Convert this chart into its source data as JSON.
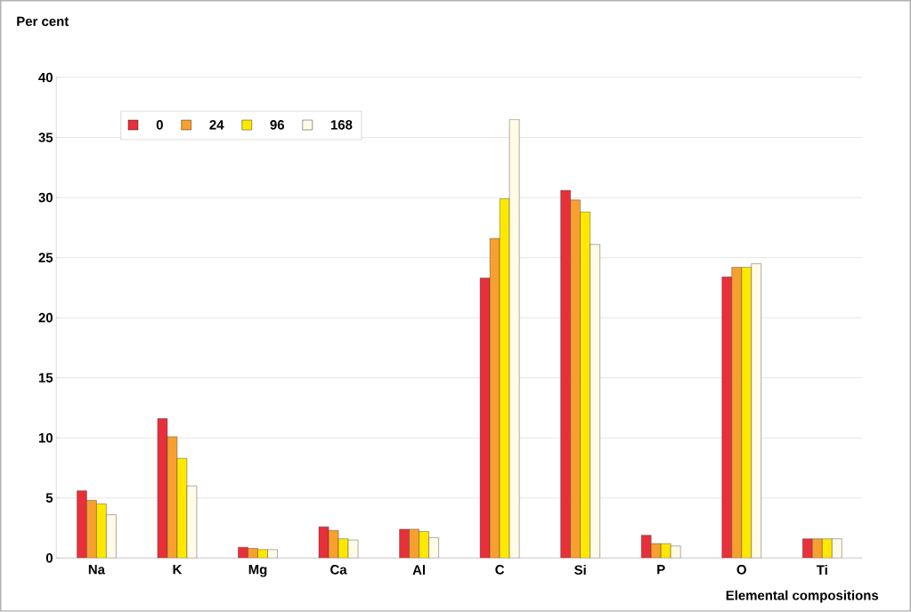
{
  "chart_data": {
    "type": "bar",
    "ylabel": "Per cent",
    "xlabel": "Elemental compositions",
    "categories": [
      "Na",
      "K",
      "Mg",
      "Ca",
      "Al",
      "C",
      "Si",
      "P",
      "O",
      "Ti"
    ],
    "series": [
      {
        "name": "0",
        "color": "#e8303a",
        "values": [
          5.6,
          11.6,
          0.9,
          2.6,
          2.4,
          23.3,
          30.6,
          1.9,
          23.4,
          1.6
        ]
      },
      {
        "name": "24",
        "color": "#f7a030",
        "values": [
          4.8,
          10.1,
          0.8,
          2.3,
          2.4,
          26.6,
          29.8,
          1.2,
          24.2,
          1.6
        ]
      },
      {
        "name": "96",
        "color": "#ffe800",
        "values": [
          4.5,
          8.3,
          0.7,
          1.6,
          2.2,
          29.9,
          28.8,
          1.2,
          24.2,
          1.6
        ]
      },
      {
        "name": "168",
        "color": "#fffbe6",
        "values": [
          3.6,
          6.0,
          0.7,
          1.5,
          1.7,
          36.5,
          26.1,
          1.0,
          24.5,
          1.6
        ]
      }
    ],
    "ylim": [
      0,
      40
    ],
    "yticks": [
      0,
      5,
      10,
      15,
      20,
      25,
      30,
      35,
      40
    ],
    "grid": "y",
    "legend": "top left"
  }
}
